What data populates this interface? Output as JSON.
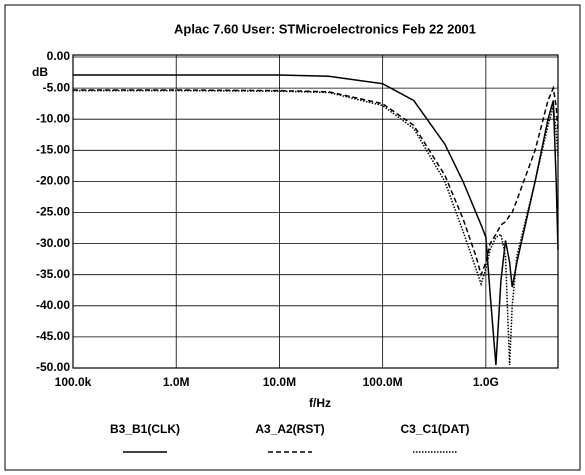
{
  "chart_data": {
    "type": "line",
    "title": "Aplac 7.60 User: STMicroelectronics   Feb 22 2001",
    "y_unit_label": "dB",
    "x_label": "f/Hz",
    "x_scale": "log",
    "grid": true,
    "xlim": [
      100000,
      5000000000
    ],
    "ylim": [
      -50,
      0
    ],
    "xticks": [
      {
        "value": 100000,
        "label": "100.0k"
      },
      {
        "value": 1000000,
        "label": "1.0M"
      },
      {
        "value": 10000000,
        "label": "10.0M"
      },
      {
        "value": 100000000,
        "label": "100.0M"
      },
      {
        "value": 1000000000,
        "label": "1.0G"
      }
    ],
    "yticks": [
      {
        "value": 0,
        "label": "0.00"
      },
      {
        "value": -5,
        "label": "-5.00"
      },
      {
        "value": -10,
        "label": "-10.00"
      },
      {
        "value": -15,
        "label": "-15.00"
      },
      {
        "value": -20,
        "label": "-20.00"
      },
      {
        "value": -25,
        "label": "-25.00"
      },
      {
        "value": -30,
        "label": "-30.00"
      },
      {
        "value": -35,
        "label": "-35.00"
      },
      {
        "value": -40,
        "label": "-40.00"
      },
      {
        "value": -45,
        "label": "-45.00"
      },
      {
        "value": -50,
        "label": "-50.00"
      }
    ],
    "x": [
      100000,
      1000000,
      10000000,
      30000000,
      100000000,
      200000000,
      400000000,
      600000000,
      800000000,
      900000000,
      1000000000,
      1100000000,
      1250000000,
      1400000000,
      1550000000,
      1700000000,
      1800000000,
      2000000000,
      3000000000,
      4000000000,
      4500000000,
      4800000000,
      5000000000
    ],
    "series": [
      {
        "name": "B3_B1(CLK)",
        "color": "#000000",
        "style": "solid",
        "values": [
          -2.9,
          -2.9,
          -2.9,
          -3.1,
          -4.3,
          -7,
          -14,
          -20,
          -25,
          -27,
          -29,
          -38,
          -49.5,
          -36,
          -29.5,
          -33,
          -37,
          -33,
          -20,
          -10,
          -7,
          -20,
          -31
        ]
      },
      {
        "name": "A3_A2(RST)",
        "color": "#000000",
        "style": "dashed",
        "values": [
          -5.3,
          -5.3,
          -5.4,
          -5.6,
          -7.5,
          -11,
          -19,
          -26,
          -32,
          -35,
          -33,
          -30,
          -28.5,
          -27,
          -26.5,
          -25.5,
          -25,
          -23,
          -15,
          -7,
          -5,
          -8,
          -12
        ]
      },
      {
        "name": "C3_C1(DAT)",
        "color": "#000000",
        "style": "dotted",
        "values": [
          -5.4,
          -5.4,
          -5.5,
          -5.7,
          -7.8,
          -11.5,
          -20,
          -28,
          -34,
          -36.5,
          -34,
          -31,
          -29,
          -28.5,
          -32,
          -49.5,
          -40,
          -32,
          -20,
          -11,
          -8,
          -12,
          -16
        ]
      }
    ]
  }
}
